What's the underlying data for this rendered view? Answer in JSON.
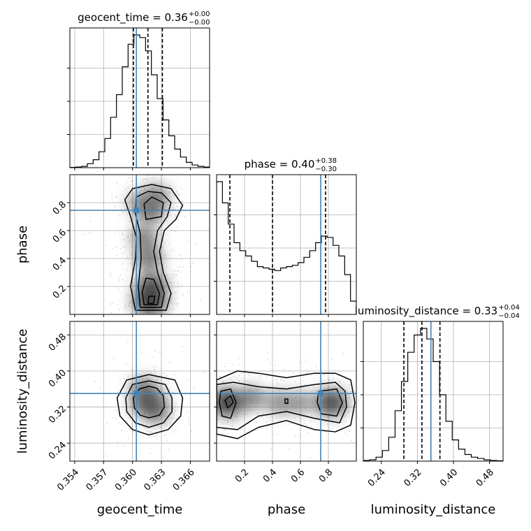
{
  "chart_data": {
    "type": "corner",
    "grid": true,
    "parameters": [
      "geocent_time",
      "phase",
      "luminosity_distance"
    ],
    "axis_labels": {
      "geocent_time": "geocent_time",
      "phase": "phase",
      "luminosity_distance": "luminosity_distance"
    },
    "ranges": {
      "geocent_time": [
        0.3535,
        0.368
      ],
      "phase": [
        0.0,
        1.0
      ],
      "luminosity_distance": [
        0.2,
        0.51
      ]
    },
    "ticks": {
      "geocent_time": [
        {
          "v": 0.354,
          "t": "0.354"
        },
        {
          "v": 0.357,
          "t": "0.357"
        },
        {
          "v": 0.36,
          "t": "0.360"
        },
        {
          "v": 0.363,
          "t": "0.363"
        },
        {
          "v": 0.366,
          "t": "0.366"
        }
      ],
      "phase": [
        {
          "v": 0.2,
          "t": "0.2"
        },
        {
          "v": 0.4,
          "t": "0.4"
        },
        {
          "v": 0.6,
          "t": "0.6"
        },
        {
          "v": 0.8,
          "t": "0.8"
        }
      ],
      "luminosity_distance": [
        {
          "v": 0.24,
          "t": "0.24"
        },
        {
          "v": 0.32,
          "t": "0.32"
        },
        {
          "v": 0.4,
          "t": "0.40"
        },
        {
          "v": 0.48,
          "t": "0.48"
        }
      ]
    },
    "truths": {
      "geocent_time": 0.3604,
      "phase": 0.745,
      "luminosity_distance": 0.35
    },
    "titles": [
      {
        "param": "geocent_time",
        "prefix": "geocent_time = 0.36",
        "sup": "+0.00",
        "sub": "−0.00"
      },
      {
        "param": "phase",
        "prefix": "phase = 0.40",
        "sup": "+0.38",
        "sub": "−0.30"
      },
      {
        "param": "luminosity_distance",
        "prefix": "luminosity_distance = 0.33",
        "sup": "+0.04",
        "sub": "−0.04"
      }
    ],
    "quantiles": {
      "geocent_time": [
        0.3601,
        0.3616,
        0.3631
      ],
      "phase": [
        0.095,
        0.4,
        0.78
      ],
      "luminosity_distance": [
        0.29,
        0.33,
        0.37
      ]
    },
    "histograms": {
      "geocent_time": [
        0.2,
        0.5,
        1,
        3,
        6,
        12,
        22,
        38,
        55,
        76,
        93,
        100,
        98,
        88,
        70,
        52,
        36,
        24,
        14,
        8,
        4,
        2,
        1,
        0.5
      ],
      "phase": [
        100,
        84,
        68,
        54,
        48,
        44,
        40,
        36,
        35,
        34,
        33,
        35,
        36,
        37,
        39,
        43,
        48,
        54,
        59,
        58,
        52,
        44,
        30,
        10
      ],
      "luminosity_distance": [
        0.5,
        1,
        3,
        8,
        18,
        38,
        60,
        82,
        95,
        100,
        92,
        75,
        50,
        30,
        16,
        9,
        5,
        3,
        2,
        1,
        0.5,
        0.3
      ]
    },
    "density_2d": {
      "phase_vs_geocent_time": {
        "points": [
          {
            "x": 0.3618,
            "y": 0.09,
            "w": 1.0
          },
          {
            "x": 0.362,
            "y": 0.2,
            "w": 0.85
          },
          {
            "x": 0.3617,
            "y": 0.4,
            "w": 0.6
          },
          {
            "x": 0.3612,
            "y": 0.55,
            "w": 0.55
          },
          {
            "x": 0.3618,
            "y": 0.75,
            "w": 0.75
          },
          {
            "x": 0.3624,
            "y": 0.85,
            "w": 0.55
          },
          {
            "x": 0.3608,
            "y": 0.8,
            "w": 0.45
          }
        ],
        "contours": [
          [
            [
              0.3603,
              0.03
            ],
            [
              0.3635,
              0.03
            ],
            [
              0.364,
              0.15
            ],
            [
              0.3632,
              0.3
            ],
            [
              0.3628,
              0.45
            ],
            [
              0.3633,
              0.6
            ],
            [
              0.3645,
              0.68
            ],
            [
              0.3652,
              0.78
            ],
            [
              0.364,
              0.9
            ],
            [
              0.362,
              0.93
            ],
            [
              0.36,
              0.9
            ],
            [
              0.3592,
              0.82
            ],
            [
              0.3598,
              0.7
            ],
            [
              0.3604,
              0.55
            ],
            [
              0.3603,
              0.4
            ],
            [
              0.3598,
              0.2
            ]
          ],
          [
            [
              0.3608,
              0.05
            ],
            [
              0.363,
              0.05
            ],
            [
              0.3633,
              0.15
            ],
            [
              0.3626,
              0.3
            ],
            [
              0.3622,
              0.45
            ],
            [
              0.3626,
              0.6
            ],
            [
              0.3636,
              0.7
            ],
            [
              0.364,
              0.8
            ],
            [
              0.363,
              0.87
            ],
            [
              0.3616,
              0.88
            ],
            [
              0.3604,
              0.84
            ],
            [
              0.3603,
              0.72
            ],
            [
              0.3608,
              0.58
            ],
            [
              0.3609,
              0.4
            ],
            [
              0.3606,
              0.2
            ]
          ],
          [
            [
              0.3612,
              0.07
            ],
            [
              0.3626,
              0.07
            ],
            [
              0.3628,
              0.15
            ],
            [
              0.3622,
              0.25
            ],
            [
              0.3614,
              0.26
            ],
            [
              0.361,
              0.16
            ]
          ],
          [
            [
              0.3614,
              0.68
            ],
            [
              0.363,
              0.7
            ],
            [
              0.3632,
              0.8
            ],
            [
              0.362,
              0.84
            ],
            [
              0.3612,
              0.79
            ]
          ],
          [
            [
              0.3616,
              0.08
            ],
            [
              0.3622,
              0.08
            ],
            [
              0.3623,
              0.13
            ],
            [
              0.3617,
              0.13
            ]
          ]
        ]
      },
      "luminosity_distance_vs_geocent_time": {
        "points": [
          {
            "x": 0.3617,
            "y": 0.33,
            "w": 1.0
          },
          {
            "x": 0.3612,
            "y": 0.36,
            "w": 0.6
          },
          {
            "x": 0.3624,
            "y": 0.31,
            "w": 0.6
          }
        ],
        "contours": [
          [
            [
              0.36,
              0.27
            ],
            [
              0.3617,
              0.258
            ],
            [
              0.3637,
              0.27
            ],
            [
              0.365,
              0.3
            ],
            [
              0.3652,
              0.34
            ],
            [
              0.3644,
              0.38
            ],
            [
              0.3617,
              0.392
            ],
            [
              0.3594,
              0.38
            ],
            [
              0.3584,
              0.34
            ],
            [
              0.3587,
              0.3
            ]
          ],
          [
            [
              0.3603,
              0.285
            ],
            [
              0.3617,
              0.275
            ],
            [
              0.3632,
              0.285
            ],
            [
              0.3641,
              0.31
            ],
            [
              0.3641,
              0.34
            ],
            [
              0.3634,
              0.37
            ],
            [
              0.3617,
              0.378
            ],
            [
              0.36,
              0.37
            ],
            [
              0.3593,
              0.34
            ],
            [
              0.3594,
              0.31
            ]
          ],
          [
            [
              0.3608,
              0.302
            ],
            [
              0.3617,
              0.296
            ],
            [
              0.3628,
              0.302
            ],
            [
              0.3633,
              0.32
            ],
            [
              0.3632,
              0.345
            ],
            [
              0.3625,
              0.362
            ],
            [
              0.3617,
              0.366
            ],
            [
              0.3607,
              0.36
            ],
            [
              0.3601,
              0.34
            ],
            [
              0.3602,
              0.318
            ]
          ]
        ]
      },
      "luminosity_distance_vs_phase": {
        "points": [
          {
            "x": 0.08,
            "y": 0.33,
            "w": 1.0
          },
          {
            "x": 0.82,
            "y": 0.33,
            "w": 0.9
          },
          {
            "x": 0.45,
            "y": 0.33,
            "w": 0.5
          },
          {
            "x": 0.25,
            "y": 0.34,
            "w": 0.55
          },
          {
            "x": 0.6,
            "y": 0.33,
            "w": 0.45
          }
        ],
        "contours": [
          [
            [
              0.0,
              0.38
            ],
            [
              0.15,
              0.4
            ],
            [
              0.3,
              0.395
            ],
            [
              0.5,
              0.385
            ],
            [
              0.7,
              0.395
            ],
            [
              0.85,
              0.395
            ],
            [
              0.96,
              0.38
            ],
            [
              0.99,
              0.33
            ],
            [
              0.96,
              0.28
            ],
            [
              0.85,
              0.265
            ],
            [
              0.7,
              0.27
            ],
            [
              0.5,
              0.29
            ],
            [
              0.3,
              0.275
            ],
            [
              0.15,
              0.25
            ],
            [
              0.0,
              0.26
            ]
          ],
          [
            [
              0.0,
              0.37
            ],
            [
              0.12,
              0.375
            ],
            [
              0.3,
              0.365
            ],
            [
              0.5,
              0.36
            ],
            [
              0.7,
              0.37
            ],
            [
              0.85,
              0.375
            ],
            [
              0.92,
              0.355
            ],
            [
              0.93,
              0.32
            ],
            [
              0.88,
              0.285
            ],
            [
              0.7,
              0.295
            ],
            [
              0.5,
              0.31
            ],
            [
              0.3,
              0.3
            ],
            [
              0.15,
              0.27
            ],
            [
              0.0,
              0.275
            ]
          ],
          [
            [
              0.03,
              0.355
            ],
            [
              0.1,
              0.36
            ],
            [
              0.14,
              0.33
            ],
            [
              0.1,
              0.295
            ],
            [
              0.04,
              0.3
            ],
            [
              0.02,
              0.33
            ]
          ],
          [
            [
              0.73,
              0.355
            ],
            [
              0.86,
              0.36
            ],
            [
              0.9,
              0.33
            ],
            [
              0.86,
              0.3
            ],
            [
              0.75,
              0.305
            ],
            [
              0.72,
              0.33
            ]
          ],
          [
            [
              0.49,
              0.328
            ],
            [
              0.51,
              0.328
            ],
            [
              0.51,
              0.338
            ],
            [
              0.49,
              0.338
            ]
          ],
          [
            [
              0.06,
              0.335
            ],
            [
              0.1,
              0.345
            ],
            [
              0.12,
              0.33
            ],
            [
              0.08,
              0.318
            ]
          ]
        ]
      }
    }
  }
}
